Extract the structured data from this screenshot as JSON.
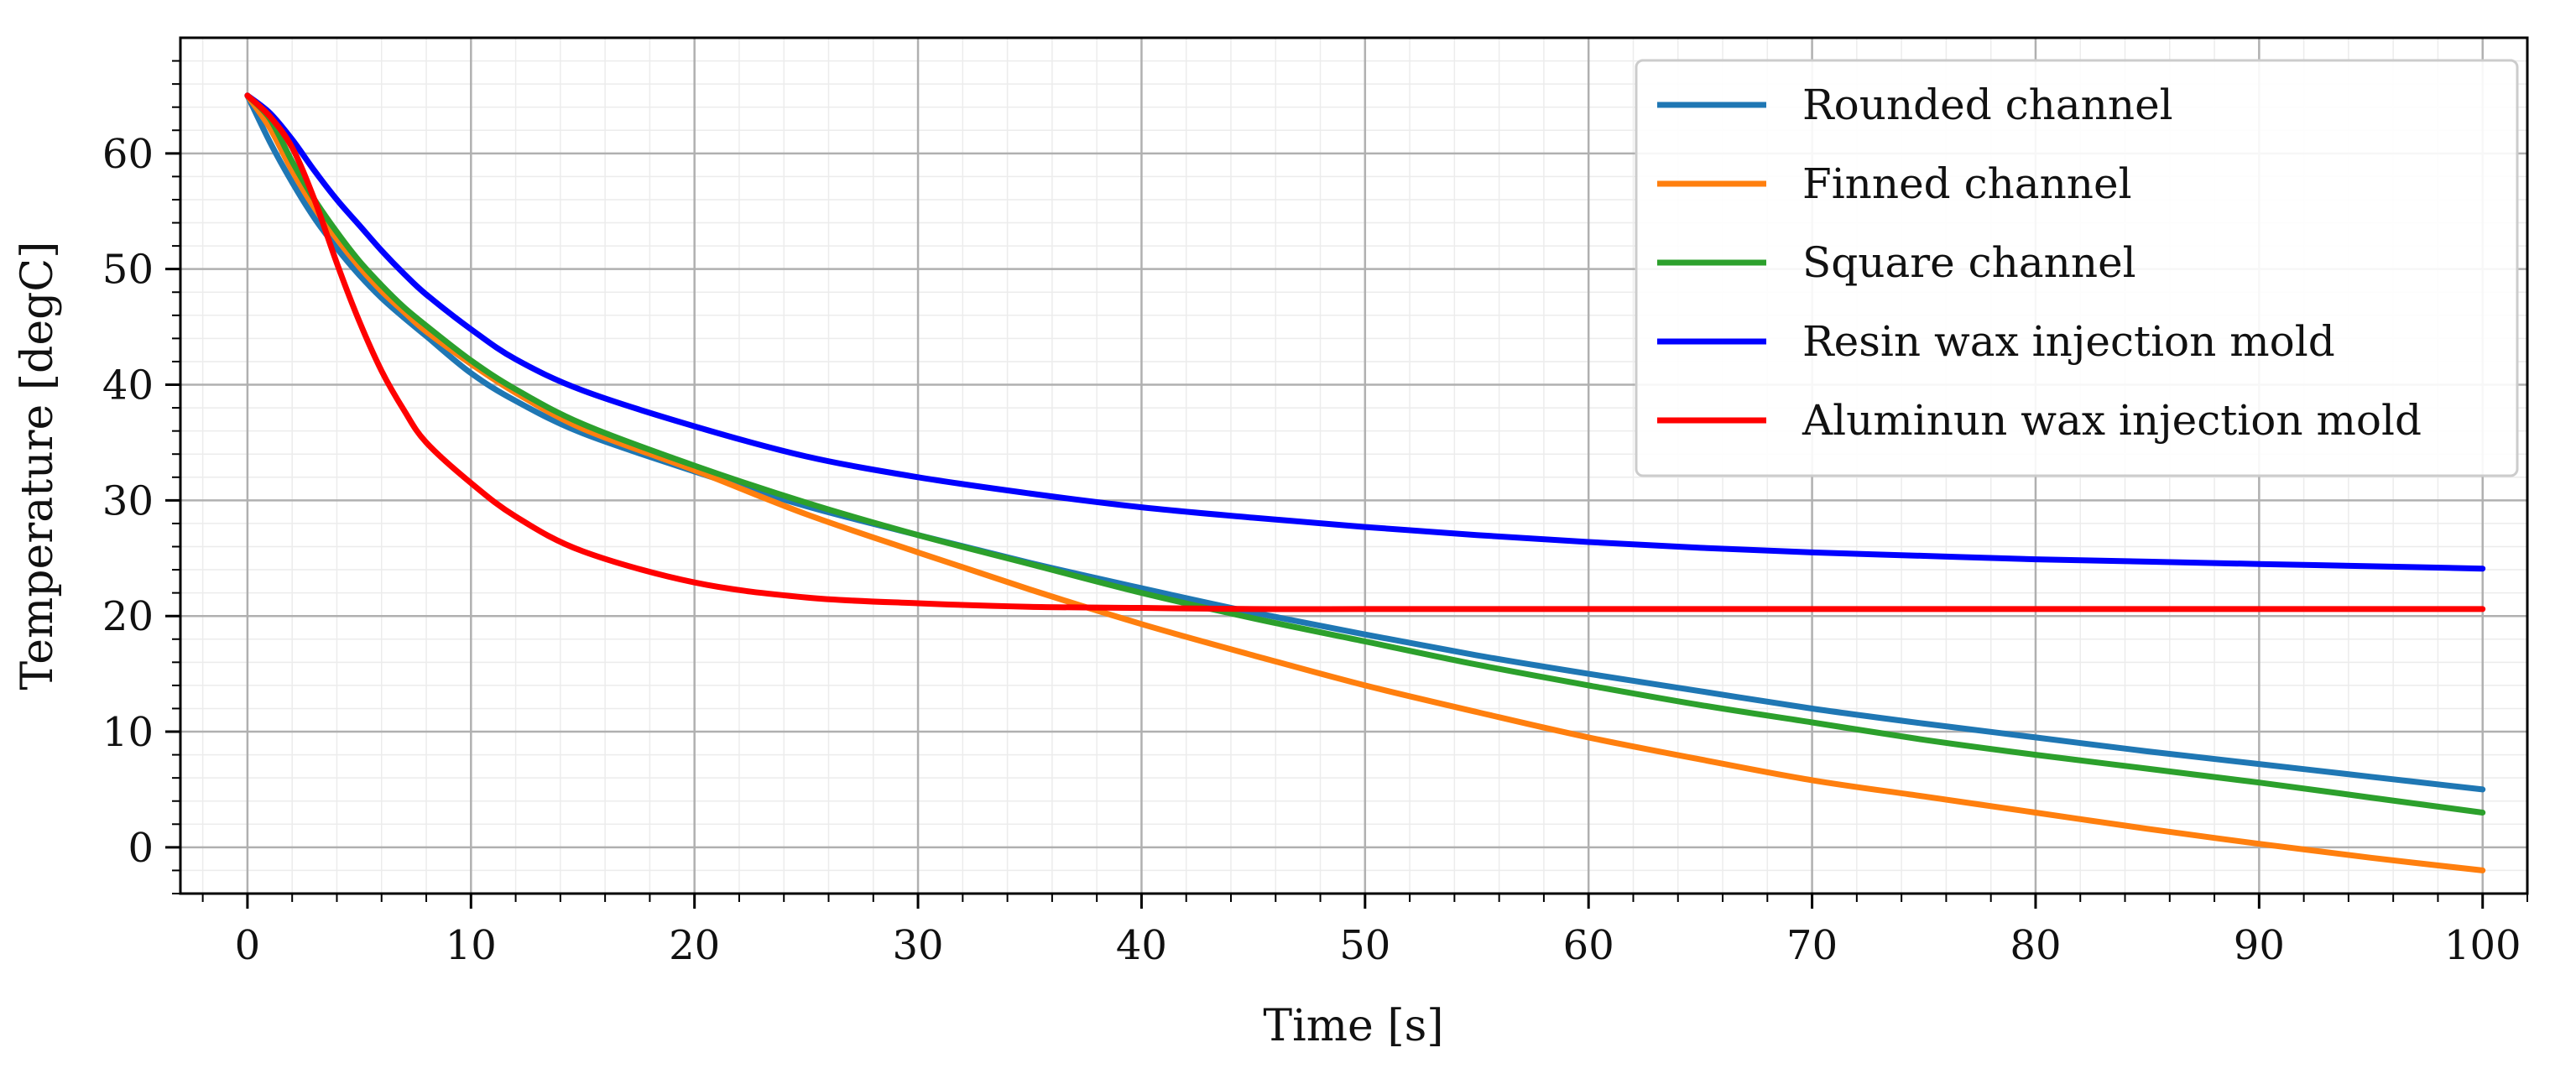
{
  "chart_data": {
    "type": "line",
    "title": "",
    "xlabel": "Time [s]",
    "ylabel": "Temperature [degC]",
    "xlim": [
      -3,
      102
    ],
    "ylim": [
      -4,
      70
    ],
    "x_ticks": [
      0,
      10,
      20,
      30,
      40,
      50,
      60,
      70,
      80,
      90,
      100
    ],
    "y_ticks": [
      0,
      10,
      20,
      30,
      40,
      50,
      60
    ],
    "x_tick_labels": [
      "0",
      "10",
      "20",
      "30",
      "40",
      "50",
      "60",
      "70",
      "80",
      "90",
      "100"
    ],
    "y_tick_labels": [
      "0",
      "10",
      "20",
      "30",
      "40",
      "50",
      "60"
    ],
    "grid": true,
    "minor_grid": true,
    "legend_position": "top-right",
    "x": [
      0,
      1,
      2,
      3,
      4,
      5,
      6,
      7,
      8,
      10,
      12,
      15,
      20,
      25,
      30,
      35,
      40,
      45,
      50,
      55,
      60,
      65,
      70,
      75,
      80,
      85,
      90,
      95,
      100
    ],
    "series": [
      {
        "name": "Rounded channel",
        "color": "#1f77b4",
        "values": [
          65.0,
          61.0,
          57.5,
          54.4,
          51.8,
          49.5,
          47.5,
          45.8,
          44.2,
          41.0,
          38.6,
          35.8,
          32.5,
          29.5,
          27.0,
          24.6,
          22.4,
          20.3,
          18.4,
          16.6,
          15.0,
          13.5,
          12.0,
          10.7,
          9.5,
          8.3,
          7.2,
          6.1,
          5.0
        ]
      },
      {
        "name": "Finned channel",
        "color": "#ff7f0e",
        "values": [
          65.0,
          62.2,
          58.5,
          55.3,
          52.6,
          50.2,
          48.1,
          46.3,
          44.6,
          41.8,
          39.3,
          36.2,
          32.6,
          28.8,
          25.5,
          22.3,
          19.3,
          16.6,
          14.0,
          11.7,
          9.5,
          7.6,
          5.8,
          4.4,
          3.0,
          1.6,
          0.3,
          -0.9,
          -2.0
        ]
      },
      {
        "name": "Square channel",
        "color": "#2ca02c",
        "values": [
          65.0,
          63.0,
          59.3,
          56.0,
          53.2,
          50.7,
          48.6,
          46.7,
          45.1,
          42.1,
          39.6,
          36.6,
          33.0,
          29.8,
          27.0,
          24.5,
          22.0,
          19.8,
          17.8,
          15.8,
          14.0,
          12.3,
          10.8,
          9.3,
          8.0,
          6.8,
          5.6,
          4.3,
          3.0
        ]
      },
      {
        "name": "Resin wax injection mold",
        "color": "#0000ff",
        "values": [
          65.0,
          63.5,
          61.2,
          58.5,
          56.0,
          53.8,
          51.6,
          49.6,
          47.8,
          44.8,
          42.2,
          39.5,
          36.4,
          33.8,
          32.0,
          30.6,
          29.4,
          28.5,
          27.7,
          27.0,
          26.4,
          25.9,
          25.5,
          25.2,
          24.9,
          24.7,
          24.5,
          24.3,
          24.1
        ]
      },
      {
        "name": "Aluminun wax injection mold",
        "color": "#ff0000",
        "values": [
          65.0,
          63.2,
          60.5,
          56.0,
          50.5,
          45.5,
          41.2,
          37.8,
          35.0,
          31.5,
          28.6,
          25.6,
          22.9,
          21.6,
          21.1,
          20.8,
          20.7,
          20.6,
          20.6,
          20.6,
          20.6,
          20.6,
          20.6,
          20.6,
          20.6,
          20.6,
          20.6,
          20.6,
          20.6
        ]
      }
    ]
  }
}
